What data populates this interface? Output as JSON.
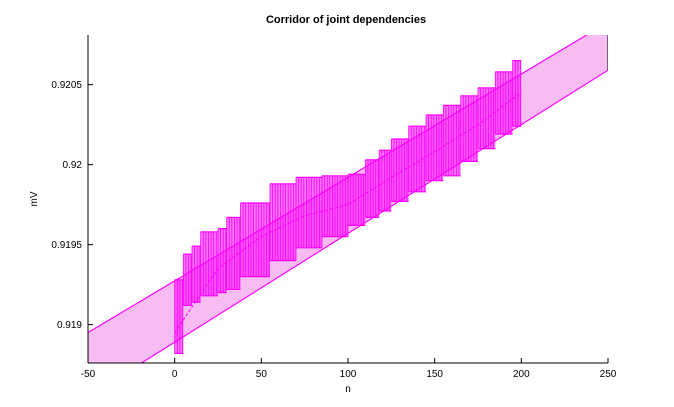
{
  "chart_data": {
    "type": "line",
    "title": "Corridor of joint dependencies",
    "xlabel": "n",
    "ylabel": "mV",
    "xlim": [
      -50,
      250
    ],
    "ylim": [
      0.91876,
      0.92081
    ],
    "x_ticks": [
      -50,
      0,
      50,
      100,
      150,
      200,
      250
    ],
    "x_tick_labels": [
      "-50",
      "0",
      "50",
      "100",
      "150",
      "200",
      "250"
    ],
    "y_ticks": [
      0.919,
      0.9195,
      0.92,
      0.9205
    ],
    "y_tick_labels": [
      "0.919",
      "0.9195",
      "0.92",
      "0.9205"
    ],
    "grid": false,
    "legend": "none",
    "colors": {
      "line": "#ff00ff",
      "corridor_fill": "#f7bdf2",
      "interval_fill": "#ff00ff"
    },
    "corridor": {
      "x": [
        -50,
        250
      ],
      "upper": [
        0.91895,
        0.92089
      ],
      "lower": [
        0.91855,
        0.92059
      ]
    },
    "interval_steps": [
      {
        "x0": 0,
        "x1": 5,
        "low": 0.91882,
        "high": 0.91928
      },
      {
        "x0": 5,
        "x1": 10,
        "low": 0.91912,
        "high": 0.91944
      },
      {
        "x0": 10,
        "x1": 15,
        "low": 0.91914,
        "high": 0.91949
      },
      {
        "x0": 15,
        "x1": 25,
        "low": 0.91918,
        "high": 0.91958
      },
      {
        "x0": 25,
        "x1": 30,
        "low": 0.9192,
        "high": 0.9196
      },
      {
        "x0": 30,
        "x1": 38,
        "low": 0.91922,
        "high": 0.91967
      },
      {
        "x0": 38,
        "x1": 55,
        "low": 0.9193,
        "high": 0.91976
      },
      {
        "x0": 55,
        "x1": 70,
        "low": 0.9194,
        "high": 0.91988
      },
      {
        "x0": 70,
        "x1": 85,
        "low": 0.91948,
        "high": 0.91992
      },
      {
        "x0": 85,
        "x1": 100,
        "low": 0.91955,
        "high": 0.91993
      },
      {
        "x0": 100,
        "x1": 110,
        "low": 0.91962,
        "high": 0.91994
      },
      {
        "x0": 110,
        "x1": 118,
        "low": 0.91967,
        "high": 0.92003
      },
      {
        "x0": 118,
        "x1": 125,
        "low": 0.91971,
        "high": 0.92009
      },
      {
        "x0": 125,
        "x1": 135,
        "low": 0.91977,
        "high": 0.92016
      },
      {
        "x0": 135,
        "x1": 145,
        "low": 0.91983,
        "high": 0.92024
      },
      {
        "x0": 145,
        "x1": 155,
        "low": 0.9199,
        "high": 0.92031
      },
      {
        "x0": 155,
        "x1": 165,
        "low": 0.91993,
        "high": 0.92037
      },
      {
        "x0": 165,
        "x1": 175,
        "low": 0.92002,
        "high": 0.92043
      },
      {
        "x0": 175,
        "x1": 185,
        "low": 0.9201,
        "high": 0.92048
      },
      {
        "x0": 185,
        "x1": 195,
        "low": 0.92019,
        "high": 0.92058
      },
      {
        "x0": 195,
        "x1": 200,
        "low": 0.92024,
        "high": 0.92065
      }
    ],
    "series": [
      {
        "x": [
          0,
          25,
          50,
          75,
          100,
          125,
          150,
          175,
          200
        ],
        "values": [
          0.91895,
          0.91935,
          0.91955,
          0.91968,
          0.91975,
          0.91992,
          0.92008,
          0.92025,
          0.92045
        ]
      }
    ]
  }
}
